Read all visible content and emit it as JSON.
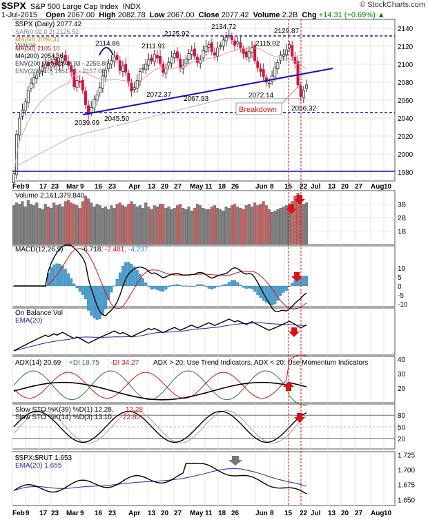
{
  "header": {
    "symbol": "$SPX",
    "name": "S&P 500 Large Cap Index",
    "exchange": "INDX",
    "brand": "© StockCharts.com",
    "date": "1-Jul-2015",
    "open_label": "Open",
    "open": "2067.00",
    "high_label": "High",
    "high": "2082.78",
    "low_label": "Low",
    "low": "2067.00",
    "close_label": "Close",
    "close": "2077.42",
    "volume_label": "Volume",
    "volume": "2.2B",
    "chg_label": "Chg",
    "chg": "+14.31 (+0.69%)",
    "chg_arrow": "▲"
  },
  "colors": {
    "up": "#2e2e2e",
    "down": "#d2143c",
    "trend": "#1010c8",
    "arrow": "#e01010",
    "grid": "#e6e6e6",
    "ema": "#2020b0",
    "vol_up": "#808080",
    "vol_down": "#c86464"
  },
  "chart_data": [
    {
      "type": "candlestick",
      "legend": {
        "main": "$SPX (Daily) 2077.42",
        "sar": "SAR(0.02,0.2) 2125.52",
        "ma50": "MA(50) 2096.31",
        "volume": "Volume",
        "ma100": "MA(50) 2105.10",
        "ma200": "MA(200) 2054.36",
        "env100": "ENV(200,10.0) 1848.93 - 2259.80",
        "env200": "ENV(200,5.0) 1951.64 - 2157.08"
      },
      "y_ticks": [
        1980,
        2000,
        2020,
        2040,
        2060,
        2080,
        2100,
        2120,
        2140
      ],
      "ylim": [
        1970,
        2150
      ],
      "annotations": [
        "2134.72",
        "2125.92",
        "2129.87",
        "2114.86",
        "2111.91",
        "2115.02",
        "2072.37",
        "2067.93",
        "2072.14",
        "2039.69",
        "2045.50",
        "2056.32"
      ],
      "breakdown_label": "Breakdown",
      "levels": [
        2131,
        2043,
        1975
      ],
      "closes": [
        1978,
        2022,
        2040,
        2049,
        2058,
        2071,
        2079,
        2085,
        2088,
        2093,
        2097,
        2100,
        2098,
        2102,
        2105,
        2099,
        2103,
        2108,
        2104,
        2099,
        2092,
        2075,
        2082,
        2080,
        2071,
        2055,
        2044,
        2052,
        2061,
        2066,
        2074,
        2087,
        2093,
        2101,
        2104,
        2108,
        2105,
        2093,
        2098,
        2091,
        2080,
        2070,
        2074,
        2082,
        2092,
        2095,
        2100,
        2105,
        2104,
        2111,
        2107,
        2101,
        2091,
        2096,
        2102,
        2108,
        2112,
        2107,
        2096,
        2099,
        2106,
        2112,
        2115,
        2109,
        2102,
        2105,
        2115,
        2120,
        2122,
        2114,
        2110,
        2118,
        2121,
        2127,
        2130,
        2132,
        2127,
        2121,
        2125,
        2118,
        2112,
        2108,
        2114,
        2119,
        2104,
        2096,
        2092,
        2086,
        2080,
        2079,
        2087,
        2096,
        2102,
        2110,
        2111,
        2116,
        2122,
        2109,
        2101,
        2077,
        2064,
        2071,
        2077
      ]
    },
    {
      "type": "bar",
      "legend": "Volume 2,161,379,840",
      "y_ticks": [
        "1B",
        "2B",
        "3B"
      ],
      "values": [
        2.9,
        3.1,
        3.0,
        3.2,
        2.8,
        3.3,
        3.0,
        2.9,
        3.1,
        2.7,
        2.6,
        3.0,
        2.8,
        2.7,
        3.1,
        2.9,
        3.0,
        2.8,
        3.2,
        3.3,
        3.1,
        3.0,
        2.9,
        2.7,
        3.2,
        3.6,
        3.4,
        3.1,
        2.8,
        3.0,
        2.9,
        2.7,
        2.8,
        2.6,
        2.9,
        2.7,
        3.0,
        3.1,
        2.9,
        2.8,
        3.0,
        3.2,
        3.0,
        2.8,
        2.9,
        2.7,
        3.1,
        2.8,
        2.6,
        2.9,
        2.8,
        3.0,
        3.0,
        2.7,
        2.8,
        2.6,
        2.7,
        2.9,
        3.0,
        2.7,
        2.6,
        2.8,
        2.5,
        2.7,
        3.0,
        2.9,
        2.7,
        2.6,
        2.6,
        2.8,
        2.9,
        2.7,
        2.6,
        2.5,
        2.8,
        2.7,
        2.9,
        3.0,
        2.8,
        2.7,
        2.6,
        2.9,
        3.0,
        2.8,
        3.1,
        2.9,
        3.0,
        3.2,
        2.9,
        2.6,
        2.4,
        2.5,
        2.6,
        2.7,
        2.8,
        2.9,
        3.0,
        3.2,
        3.6,
        3.8,
        3.4,
        3.0,
        3.1
      ]
    },
    {
      "type": "line",
      "legend": {
        "name": "MACD(12,26,9)",
        "macd": "-6.718,",
        "signal": "-2.481,",
        "hist": "-4.237"
      },
      "y_ticks": [
        "-10",
        "-5",
        "0",
        "5",
        "10"
      ]
    },
    {
      "type": "line",
      "legend": {
        "name": "On Balance Vol",
        "ema": "EMA(20)"
      }
    },
    {
      "type": "line",
      "legend": {
        "name": "ADX(14) 20.69",
        "pdi": "+DI 18.75",
        "mdi": "-DI 34.27",
        "note": "ADX > 20: Use Trend Indicators, ADX < 20: Use Momentum Indicators"
      },
      "y_ticks": [
        "20",
        "30",
        "40"
      ]
    },
    {
      "type": "line",
      "legend": {
        "slow1": "Slow STO %K(39) %D(1) 12.28,",
        "slow1b": "12.28",
        "slow2": "Slow STO %K(14) %D(3) 13.10,",
        "slow2b": "22.80"
      },
      "y_ticks": [
        "20",
        "50",
        "80"
      ]
    },
    {
      "type": "line",
      "legend": {
        "name": "$SPX:$RUT 1.653",
        "ema": "EMA(20) 1.655"
      },
      "y_ticks": [
        "1.650",
        "1.675",
        "1.700",
        "1.725"
      ]
    }
  ],
  "x_axis": {
    "labels": [
      "Feb",
      "9",
      "17",
      "23",
      "Mar",
      "9",
      "16",
      "23",
      "Apr",
      "13",
      "20",
      "27",
      "May",
      "11",
      "18",
      "26",
      "Jun",
      "8",
      "15",
      "22",
      "Jul",
      "13",
      "20",
      "27",
      "Aug",
      "10"
    ]
  }
}
